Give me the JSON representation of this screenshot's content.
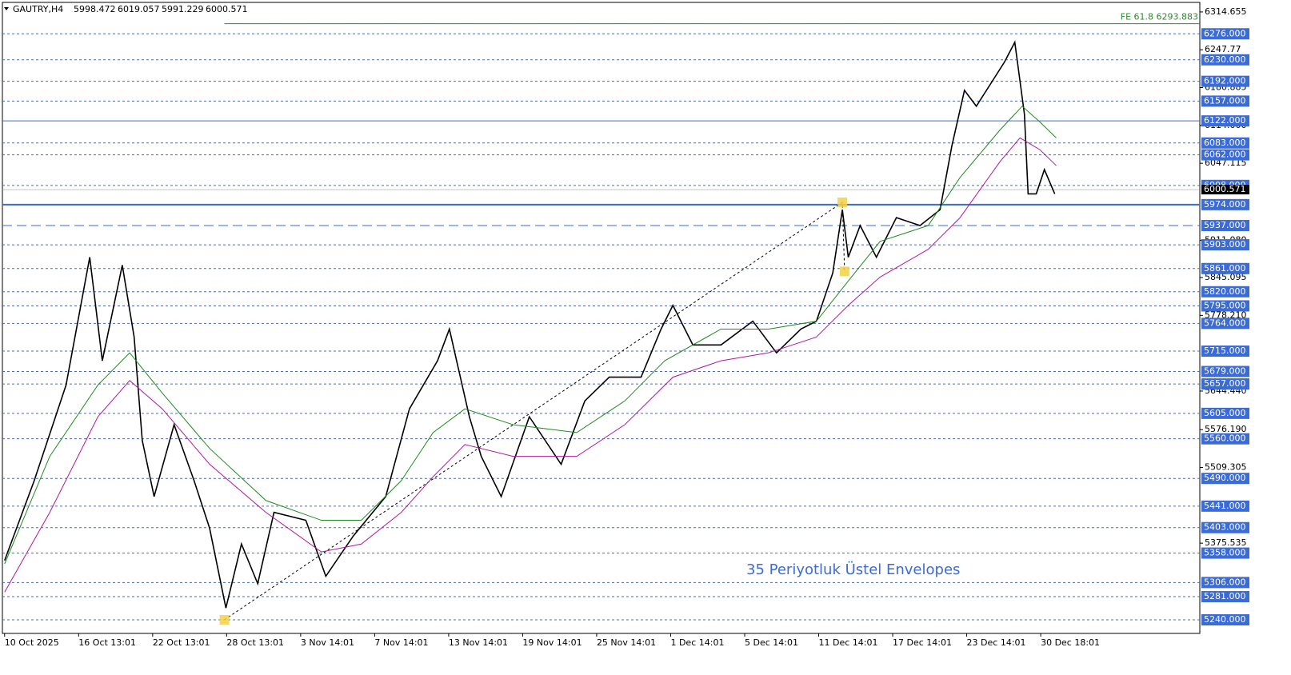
{
  "chart_data": {
    "type": "line",
    "title": "GAUTRY,H4",
    "ohlc": [
      5998.472,
      6019.057,
      5991.229,
      6000.571
    ],
    "annotation": "35 Periyotluk Üstel Envelopes",
    "xlim": [
      -0.03,
      16.15
    ],
    "ylim": [
      5216,
      6331.5
    ],
    "xticks": [
      {
        "value": 0,
        "label": "10 Oct 2025"
      },
      {
        "value": 1,
        "label": "16 Oct 13:01"
      },
      {
        "value": 2,
        "label": "22 Oct 13:01"
      },
      {
        "value": 3,
        "label": "28 Oct 13:01"
      },
      {
        "value": 4,
        "label": "3 Nov 14:01"
      },
      {
        "value": 5,
        "label": "7 Nov 14:01"
      },
      {
        "value": 6,
        "label": "13 Nov 14:01"
      },
      {
        "value": 7,
        "label": "19 Nov 14:01"
      },
      {
        "value": 8,
        "label": "25 Nov 14:01"
      },
      {
        "value": 9,
        "label": "1 Dec 14:01"
      },
      {
        "value": 10,
        "label": "5 Dec 14:01"
      },
      {
        "value": 11,
        "label": "11 Dec 14:01"
      },
      {
        "value": 12,
        "label": "17 Dec 14:01"
      },
      {
        "value": 13,
        "label": "23 Dec 14:01"
      },
      {
        "value": 14,
        "label": "30 Dec 18:01"
      }
    ],
    "yticks": [
      6314.655,
      6247.77,
      6180.885,
      {
        "value": 6114,
        "label": "6114.000"
      },
      6047.115,
      {
        "value": 5911.08,
        "label": "5911.080"
      },
      5845.095,
      {
        "value": 5778.21,
        "label": "5778.210"
      },
      {
        "value": 5644.44,
        "label": "5644.440"
      },
      {
        "value": 5576.19,
        "label": "5576.190"
      },
      5509.305,
      5375.535
    ],
    "levels": [
      {
        "value": 6276,
        "label": "6276.000",
        "style": "dashed"
      },
      {
        "value": 6230,
        "label": "6230.000",
        "style": "dashed"
      },
      {
        "value": 6192,
        "label": "6192.000",
        "style": "dashed"
      },
      {
        "value": 6157,
        "label": "6157.000",
        "style": "dashed"
      },
      {
        "value": 6122,
        "label": "6122.000",
        "style": "solid"
      },
      {
        "value": 6083,
        "label": "6083.000",
        "style": "dashed"
      },
      {
        "value": 6062,
        "label": "6062.000",
        "style": "dashed"
      },
      {
        "value": 6008,
        "label": "6008.000",
        "style": "dashed"
      },
      {
        "value": 5974,
        "label": "5974.000",
        "style": "thick"
      },
      {
        "value": 5937,
        "label": "5937.000",
        "style": "longdash"
      },
      {
        "value": 5903,
        "label": "5903.000",
        "style": "dashed"
      },
      {
        "value": 5861,
        "label": "5861.000",
        "style": "dashed"
      },
      {
        "value": 5820,
        "label": "5820.000",
        "style": "dashed"
      },
      {
        "value": 5795,
        "label": "5795.000",
        "style": "dashed"
      },
      {
        "value": 5764,
        "label": "5764.000",
        "style": "dashed"
      },
      {
        "value": 5715,
        "label": "5715.000",
        "style": "dashed"
      },
      {
        "value": 5679,
        "label": "5679.000",
        "style": "dashed"
      },
      {
        "value": 5657,
        "label": "5657.000",
        "style": "dashed"
      },
      {
        "value": 5605,
        "label": "5605.000",
        "style": "dashed"
      },
      {
        "value": 5560,
        "label": "5560.000",
        "style": "dashed"
      },
      {
        "value": 5490,
        "label": "5490.000",
        "style": "dashed"
      },
      {
        "value": 5441,
        "label": "5441.000",
        "style": "dashed"
      },
      {
        "value": 5403,
        "label": "5403.000",
        "style": "dashed"
      },
      {
        "value": 5358,
        "label": "5358.000",
        "style": "dashed"
      },
      {
        "value": 5306,
        "label": "5306.000",
        "style": "dashed"
      },
      {
        "value": 5281,
        "label": "5281.000",
        "style": "dashed"
      },
      {
        "value": 5240,
        "label": "5240.000",
        "style": "dashed"
      }
    ],
    "fe_level": {
      "value": 6293.883,
      "label": "FE 61.8 6293.883",
      "start": 2.97,
      "color": "#2e8b2e"
    },
    "last_price": {
      "value": 6000.571,
      "label": "6000.571"
    },
    "fibo_points": {
      "x": [
        2.97,
        11.32,
        11.35
      ],
      "y": [
        5240,
        5978,
        5856
      ],
      "color": "#f5d142"
    },
    "series": [
      {
        "color": "#000000",
        "x": [
          0,
          0.4,
          0.83,
          1.15,
          1.32,
          1.59,
          1.75,
          1.86,
          2.02,
          2.29,
          2.56,
          2.77,
          2.99,
          3.2,
          3.42,
          3.64,
          4.07,
          4.34,
          4.71,
          5.15,
          5.47,
          5.85,
          6.01,
          6.28,
          6.44,
          6.71,
          7.09,
          7.52,
          7.84,
          8.17,
          8.6,
          8.87,
          9.03,
          9.3,
          9.68,
          10.11,
          10.43,
          10.76,
          10.97,
          11.19,
          11.32,
          11.4,
          11.56,
          11.78,
          12.05,
          12.37,
          12.64,
          12.8,
          12.97,
          13.13,
          13.34,
          13.51,
          13.65,
          13.78,
          13.83,
          13.94,
          14.05,
          14.19
        ],
        "values": [
          5345,
          5486,
          5655,
          5881,
          5698,
          5867,
          5740,
          5557,
          5458,
          5585,
          5486,
          5402,
          5261,
          5374,
          5304,
          5430,
          5416,
          5317,
          5388,
          5458,
          5613,
          5698,
          5754,
          5599,
          5529,
          5458,
          5599,
          5515,
          5627,
          5669,
          5669,
          5754,
          5796,
          5726,
          5726,
          5768,
          5712,
          5754,
          5768,
          5853,
          5965,
          5881,
          5937,
          5881,
          5951,
          5937,
          5965,
          6078,
          6176,
          6148,
          6191,
          6226,
          6261,
          6134,
          5993,
          5993,
          6036,
          5993
        ]
      },
      {
        "color": "#1f8a1f",
        "x": [
          0,
          0.61,
          1.26,
          1.69,
          2.13,
          2.77,
          3.53,
          4.28,
          4.82,
          5.36,
          5.79,
          6.22,
          6.87,
          7.73,
          8.38,
          8.92,
          9.68,
          10.32,
          10.97,
          11.4,
          11.83,
          12.48,
          12.91,
          13.45,
          13.75,
          13.99,
          14.21
        ],
        "values": [
          5339,
          5529,
          5655,
          5712,
          5641,
          5543,
          5451,
          5416,
          5416,
          5486,
          5571,
          5613,
          5585,
          5571,
          5627,
          5698,
          5754,
          5754,
          5768,
          5839,
          5909,
          5937,
          6022,
          6106,
          6148,
          6120,
          6092
        ]
      },
      {
        "color": "#b0179e",
        "x": [
          0,
          0.61,
          1.26,
          1.69,
          2.13,
          2.77,
          3.53,
          4.28,
          4.82,
          5.36,
          5.79,
          6.22,
          6.87,
          7.73,
          8.38,
          9.03,
          9.68,
          10.32,
          10.97,
          11.4,
          11.83,
          12.48,
          12.91,
          13.45,
          13.72,
          13.99,
          14.21
        ],
        "values": [
          5289,
          5430,
          5599,
          5663,
          5613,
          5515,
          5430,
          5360,
          5374,
          5430,
          5493,
          5550,
          5529,
          5529,
          5585,
          5669,
          5698,
          5712,
          5740,
          5796,
          5846,
          5895,
          5951,
          6050,
          6092,
          6071,
          6043
        ]
      }
    ]
  }
}
